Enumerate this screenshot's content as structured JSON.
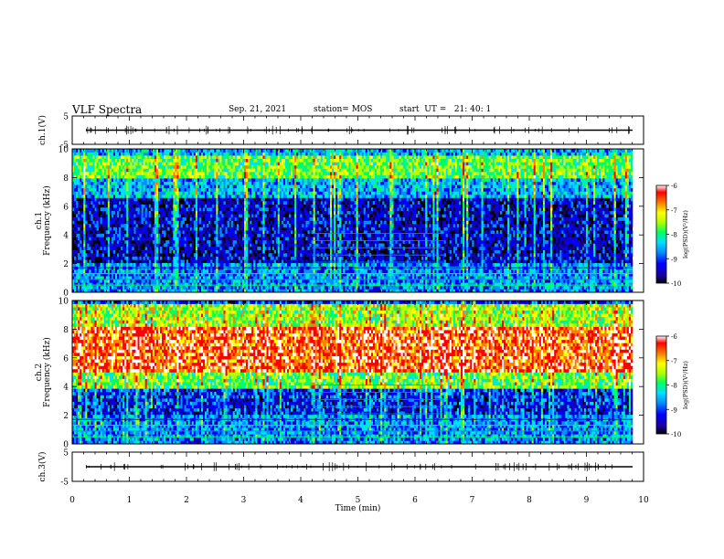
{
  "header": {
    "title": "VLF Spectra",
    "date": "Sep. 21, 2021",
    "station": "station= MOS",
    "start_ut": "start  UT =   21: 40: 1"
  },
  "chart_data": [
    {
      "type": "line",
      "panel": "ch1-waveform",
      "ylabel": "ch.1(V)",
      "ylim": [
        -5,
        5
      ],
      "y_ticks": [
        "5",
        "-5"
      ],
      "xlim": [
        0,
        10
      ],
      "series": [
        {
          "values_description_free": true,
          "level": 0
        }
      ]
    },
    {
      "type": "heatmap",
      "panel": "ch1-spectrogram",
      "ylabel": "ch.1\nFrequency (kHz)",
      "ylim": [
        0,
        10
      ],
      "y_ticks": [
        "0",
        "2",
        "4",
        "6",
        "8",
        "10"
      ],
      "xlim": [
        0,
        10
      ],
      "colorbar": {
        "label": "log(PSD)(V²/Hz)",
        "range": [
          -10,
          -6
        ],
        "ticks": [
          "-6",
          "-7",
          "-8",
          "-9",
          "-10"
        ]
      }
    },
    {
      "type": "heatmap",
      "panel": "ch2-spectrogram",
      "ylabel": "ch.2\nFrequency (kHz)",
      "ylim": [
        0,
        10
      ],
      "y_ticks": [
        "0",
        "2",
        "4",
        "6",
        "8",
        "10"
      ],
      "xlim": [
        0,
        10
      ],
      "colorbar": {
        "label": "log(PSD)(V²/Hz)",
        "range": [
          -10,
          -6
        ],
        "ticks": [
          "-6",
          "-7",
          "-8",
          "-9",
          "-10"
        ]
      }
    },
    {
      "type": "line",
      "panel": "ch3-waveform",
      "ylabel": "ch.3(V)",
      "ylim": [
        -5,
        5
      ],
      "y_ticks": [
        "5",
        "-5"
      ],
      "xlim": [
        0,
        10
      ],
      "x_ticks": [
        "0",
        "1",
        "2",
        "3",
        "4",
        "5",
        "6",
        "7",
        "8",
        "9",
        "10"
      ],
      "xlabel": "Time (min)",
      "series": [
        {
          "level": 0
        }
      ]
    }
  ],
  "colors": {
    "colormap": [
      "#000000",
      "#1a00a0",
      "#0000ff",
      "#0090ff",
      "#00e0ff",
      "#00ff60",
      "#b0ff00",
      "#ffff00",
      "#ff8000",
      "#ff0000",
      "#ffffff"
    ],
    "axis": "#000000"
  }
}
